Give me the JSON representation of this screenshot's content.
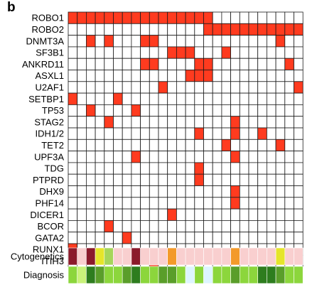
{
  "panel_label": "b",
  "colors": {
    "mutation": "#FF3B1F",
    "empty": "#FFFFFF",
    "grid": "#1a1a1a"
  },
  "oncoprint": {
    "n_samples": 26,
    "genes": [
      {
        "name": "ROBO1",
        "mutated": [
          0,
          1,
          2,
          3,
          4,
          5,
          6,
          7,
          8,
          9,
          10,
          11,
          12,
          13,
          14,
          15
        ]
      },
      {
        "name": "ROBO2",
        "mutated": [
          15,
          16,
          17,
          18,
          19,
          20,
          21,
          22,
          23,
          24,
          25
        ]
      },
      {
        "name": "DNMT3A",
        "mutated": [
          2,
          4,
          8,
          9,
          23
        ]
      },
      {
        "name": "SF3B1",
        "mutated": [
          11,
          12,
          13,
          17
        ]
      },
      {
        "name": "ANKRD11",
        "mutated": [
          8,
          9,
          14,
          15,
          24
        ]
      },
      {
        "name": "ASXL1",
        "mutated": [
          13,
          14,
          15
        ]
      },
      {
        "name": "U2AF1",
        "mutated": [
          10,
          25
        ]
      },
      {
        "name": "SETBP1",
        "mutated": [
          0,
          5
        ]
      },
      {
        "name": "TP53",
        "mutated": [
          2,
          7
        ]
      },
      {
        "name": "STAG2",
        "mutated": [
          4,
          18
        ]
      },
      {
        "name": "IDH1/2",
        "mutated": [
          14,
          18,
          21
        ]
      },
      {
        "name": "TET2",
        "mutated": [
          17,
          23
        ]
      },
      {
        "name": "UPF3A",
        "mutated": [
          7,
          18
        ]
      },
      {
        "name": "TDG",
        "mutated": [
          14
        ]
      },
      {
        "name": "PTPRD",
        "mutated": [
          14
        ]
      },
      {
        "name": "DHX9",
        "mutated": [
          18
        ]
      },
      {
        "name": "PHF14",
        "mutated": [
          18
        ]
      },
      {
        "name": "DICER1",
        "mutated": [
          11
        ]
      },
      {
        "name": "BCOR",
        "mutated": [
          4
        ]
      },
      {
        "name": "GATA2",
        "mutated": [
          6
        ]
      },
      {
        "name": "RUNX1",
        "mutated": [
          0
        ]
      },
      {
        "name": "ITIH3",
        "mutated": [
          9
        ]
      }
    ],
    "tracks": [
      {
        "name": "Cytogenetics",
        "colors": [
          "#8B1A2B",
          "#F9CFCF",
          "#8B1A2B",
          "#E5E52A",
          "#A6D65A",
          "#F9CFCF",
          "#F9CFCF",
          "#8B1A2B",
          "#F9CFCF",
          "#F9CFCF",
          "#F9CFCF",
          "#F39A2A",
          "#F9CFCF",
          "#F9CFCF",
          "#F9CFCF",
          "#F9CFCF",
          "#F9CFCF",
          "#F9CFCF",
          "#F39A2A",
          "#F9CFCF",
          "#F9CFCF",
          "#F9CFCF",
          "#F9CFCF",
          "#E5E52A",
          "#F9CFCF",
          "#F9CFCF"
        ]
      },
      {
        "name": "Diagnosis",
        "colors": [
          "#8CD63C",
          "#C9F27A",
          "#2E7D1E",
          "#5A9E2A",
          "#8CD63C",
          "#8CD63C",
          "#5A9E2A",
          "#2E7D1E",
          "#8CD63C",
          "#8CD63C",
          "#5A9E2A",
          "#5A9E2A",
          "#8CD63C",
          "#DDF5FF",
          "#8CD63C",
          "#DDF5FF",
          "#8CD63C",
          "#8CD63C",
          "#5A9E2A",
          "#8CD63C",
          "#8CD63C",
          "#2E7D1E",
          "#2E7D1E",
          "#5A9E2A",
          "#8CD63C",
          "#8CD63C"
        ]
      }
    ]
  }
}
